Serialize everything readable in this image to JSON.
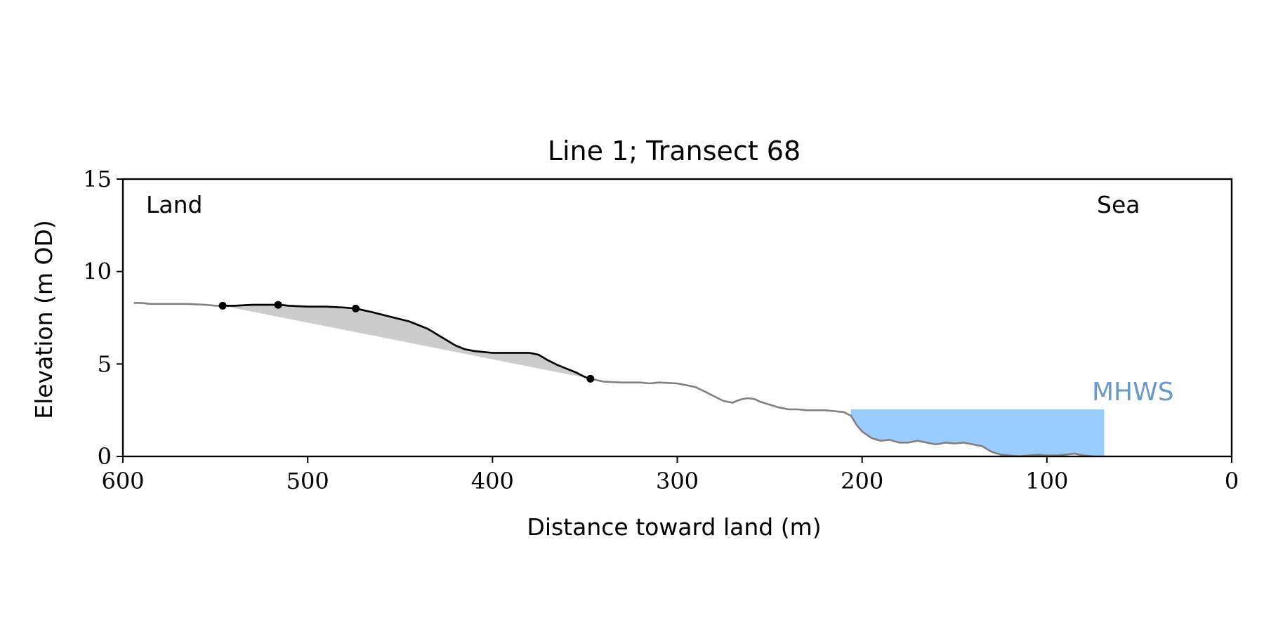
{
  "chart_data": {
    "type": "line",
    "title": "Line 1; Transect 68",
    "xlabel": "Distance toward land (m)",
    "ylabel": "Elevation (m OD)",
    "xlim": [
      600,
      0
    ],
    "ylim": [
      0,
      15
    ],
    "x_reversed": true,
    "xticks": [
      600,
      500,
      400,
      300,
      200,
      100,
      0
    ],
    "yticks": [
      0,
      5,
      10,
      15
    ],
    "grid": false,
    "annotations": {
      "left": "Land",
      "right": "Sea",
      "mhws_label": "MHWS"
    },
    "mhws": {
      "elevation": 2.55,
      "x_from": 206,
      "x_to": 69,
      "color": "#99ccff",
      "label_color": "#6699cc"
    },
    "profile": {
      "color": "#808080",
      "x": [
        594,
        590,
        585,
        575,
        565,
        555,
        550,
        546,
        540,
        530,
        520,
        515,
        510,
        500,
        490,
        480,
        474,
        465,
        455,
        445,
        440,
        435,
        430,
        425,
        420,
        415,
        410,
        405,
        400,
        395,
        390,
        385,
        380,
        375,
        370,
        365,
        360,
        355,
        350,
        347,
        340,
        330,
        320,
        315,
        310,
        300,
        295,
        290,
        285,
        280,
        275,
        270,
        268,
        265,
        262,
        258,
        255,
        250,
        245,
        240,
        235,
        230,
        225,
        220,
        215,
        210,
        206,
        203,
        200,
        195,
        190,
        185,
        180,
        175,
        170,
        165,
        160,
        155,
        150,
        145,
        140,
        135,
        130,
        125,
        120,
        115,
        110,
        105,
        100,
        95,
        90,
        85,
        80,
        75
      ],
      "y": [
        8.3,
        8.3,
        8.25,
        8.25,
        8.25,
        8.2,
        8.15,
        8.15,
        8.15,
        8.2,
        8.2,
        8.2,
        8.15,
        8.1,
        8.1,
        8.05,
        8.0,
        7.8,
        7.55,
        7.3,
        7.1,
        6.9,
        6.6,
        6.3,
        6.0,
        5.8,
        5.7,
        5.65,
        5.6,
        5.6,
        5.6,
        5.6,
        5.6,
        5.5,
        5.2,
        4.95,
        4.75,
        4.55,
        4.3,
        4.2,
        4.05,
        4.0,
        4.0,
        3.95,
        4.0,
        3.95,
        3.85,
        3.75,
        3.5,
        3.25,
        3.0,
        2.9,
        3.0,
        3.1,
        3.15,
        3.1,
        2.95,
        2.8,
        2.65,
        2.55,
        2.55,
        2.5,
        2.5,
        2.5,
        2.45,
        2.4,
        2.2,
        1.7,
        1.35,
        1.0,
        0.85,
        0.9,
        0.75,
        0.75,
        0.85,
        0.75,
        0.65,
        0.75,
        0.7,
        0.75,
        0.65,
        0.55,
        0.25,
        0.1,
        0.05,
        0.0,
        0.05,
        0.1,
        0.05,
        0.05,
        0.1,
        0.15,
        0.05,
        0.0
      ]
    },
    "cliff_segment": {
      "color": "#000000",
      "x_from": 546,
      "x_to": 347
    },
    "markers": {
      "color": "#000000",
      "x": [
        546,
        516,
        474,
        347
      ],
      "y": [
        8.15,
        8.2,
        8.0,
        4.2
      ]
    },
    "shaded_area": {
      "color": "#cccccc",
      "x_from": 546,
      "x_to": 347
    }
  }
}
